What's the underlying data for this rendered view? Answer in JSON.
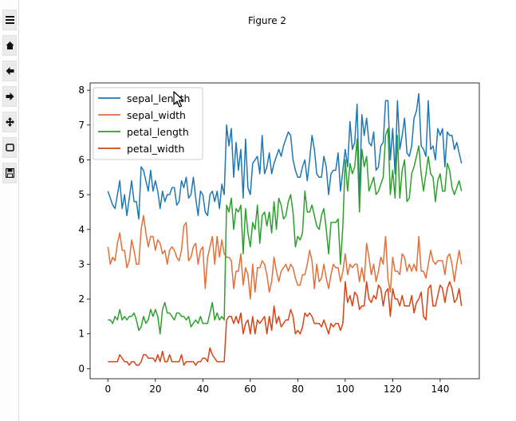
{
  "window": {
    "figure_title": "Figure 2"
  },
  "toolbar": {
    "tools": [
      {
        "name": "menu-icon",
        "label": "menu"
      },
      {
        "name": "home-icon",
        "label": "home"
      },
      {
        "name": "back-arrow-icon",
        "label": "back"
      },
      {
        "name": "forward-arrow-icon",
        "label": "forward"
      },
      {
        "name": "pan-icon",
        "label": "pan"
      },
      {
        "name": "zoom-rect-icon",
        "label": "zoom"
      },
      {
        "name": "save-icon",
        "label": "save"
      }
    ]
  },
  "colors": {
    "sepal_length": "#1f77b4",
    "sepal_width": "#e2703a",
    "petal_length": "#2ca02c",
    "petal_width": "#d84315"
  },
  "chart_data": {
    "type": "line",
    "title": "",
    "xlabel": "",
    "ylabel": "",
    "xlim": [
      -7.5,
      156.5
    ],
    "ylim": [
      -0.29,
      8.21
    ],
    "xticks": [
      0,
      20,
      40,
      60,
      80,
      100,
      120,
      140
    ],
    "yticks": [
      0,
      1,
      2,
      3,
      4,
      5,
      6,
      7,
      8
    ],
    "legend_position": "top-left",
    "grid": false,
    "series": [
      {
        "name": "sepal_length",
        "values": [
          5.1,
          4.9,
          4.7,
          4.6,
          5.0,
          5.4,
          4.6,
          5.0,
          4.4,
          4.9,
          5.4,
          4.8,
          4.8,
          4.3,
          5.8,
          5.7,
          5.4,
          5.1,
          5.7,
          5.1,
          5.4,
          5.1,
          4.6,
          5.1,
          4.8,
          5.0,
          5.0,
          5.2,
          5.2,
          4.7,
          4.8,
          5.4,
          5.2,
          5.5,
          4.9,
          5.0,
          5.5,
          4.9,
          4.4,
          5.1,
          5.0,
          4.5,
          4.4,
          5.0,
          5.1,
          4.8,
          5.1,
          4.6,
          5.3,
          5.0,
          7.0,
          6.4,
          6.9,
          5.5,
          6.5,
          5.7,
          6.3,
          4.9,
          6.6,
          5.2,
          5.0,
          5.9,
          6.0,
          6.1,
          5.6,
          6.7,
          5.6,
          5.8,
          6.2,
          5.6,
          5.9,
          6.1,
          6.3,
          6.1,
          6.4,
          6.6,
          6.8,
          6.7,
          6.0,
          5.7,
          5.5,
          5.5,
          5.8,
          6.0,
          5.4,
          6.0,
          6.7,
          6.3,
          5.6,
          5.5,
          5.5,
          6.1,
          5.8,
          5.0,
          5.6,
          5.7,
          5.7,
          6.2,
          5.1,
          5.7,
          6.3,
          5.8,
          7.1,
          6.3,
          6.5,
          7.6,
          4.9,
          7.3,
          6.7,
          7.2,
          6.5,
          6.4,
          6.8,
          5.7,
          5.8,
          6.4,
          6.5,
          7.7,
          7.7,
          6.0,
          6.9,
          5.6,
          7.7,
          6.3,
          6.7,
          7.2,
          6.2,
          6.1,
          6.4,
          7.2,
          7.4,
          7.9,
          6.4,
          6.3,
          6.1,
          7.7,
          6.3,
          6.4,
          6.0,
          6.9,
          6.7,
          6.9,
          5.8,
          6.8,
          6.7,
          6.7,
          6.3,
          6.5,
          6.2,
          5.9
        ]
      },
      {
        "name": "sepal_width",
        "values": [
          3.5,
          3.0,
          3.2,
          3.1,
          3.6,
          3.9,
          3.4,
          3.4,
          2.9,
          3.1,
          3.7,
          3.4,
          3.0,
          3.0,
          4.0,
          4.4,
          3.9,
          3.5,
          3.8,
          3.8,
          3.4,
          3.7,
          3.6,
          3.3,
          3.4,
          3.0,
          3.4,
          3.5,
          3.4,
          3.2,
          3.1,
          3.4,
          4.1,
          4.2,
          3.1,
          3.2,
          3.5,
          3.6,
          3.0,
          3.4,
          3.5,
          2.3,
          3.2,
          3.5,
          3.8,
          3.0,
          3.8,
          3.2,
          3.7,
          3.3,
          3.2,
          3.2,
          3.1,
          2.3,
          2.8,
          2.8,
          3.3,
          2.4,
          2.9,
          2.7,
          2.0,
          3.0,
          2.2,
          2.9,
          2.9,
          3.1,
          3.0,
          2.7,
          2.2,
          2.5,
          3.2,
          2.8,
          2.5,
          2.8,
          2.9,
          3.0,
          2.8,
          3.0,
          2.9,
          2.6,
          2.4,
          2.4,
          2.7,
          2.7,
          3.0,
          3.4,
          3.1,
          2.3,
          3.0,
          2.5,
          2.6,
          3.0,
          2.6,
          2.3,
          2.7,
          3.0,
          2.9,
          2.9,
          2.5,
          2.8,
          3.3,
          2.7,
          3.0,
          2.9,
          3.0,
          3.0,
          2.5,
          2.9,
          2.5,
          3.6,
          3.2,
          2.7,
          3.0,
          2.5,
          2.8,
          3.2,
          3.0,
          3.8,
          2.6,
          2.2,
          3.2,
          2.8,
          2.8,
          2.7,
          3.3,
          3.2,
          2.8,
          3.0,
          2.8,
          3.0,
          2.8,
          3.8,
          2.8,
          2.8,
          2.6,
          3.0,
          3.4,
          3.1,
          3.0,
          3.1,
          3.1,
          3.1,
          2.7,
          3.2,
          3.3,
          3.0,
          2.5,
          3.0,
          3.4,
          3.0
        ]
      },
      {
        "name": "petal_length",
        "values": [
          1.4,
          1.4,
          1.3,
          1.5,
          1.4,
          1.7,
          1.4,
          1.5,
          1.4,
          1.5,
          1.5,
          1.6,
          1.4,
          1.1,
          1.2,
          1.5,
          1.3,
          1.4,
          1.7,
          1.5,
          1.7,
          1.5,
          1.0,
          1.7,
          1.9,
          1.6,
          1.6,
          1.5,
          1.4,
          1.6,
          1.6,
          1.5,
          1.5,
          1.4,
          1.5,
          1.2,
          1.3,
          1.4,
          1.3,
          1.5,
          1.3,
          1.3,
          1.3,
          1.6,
          1.9,
          1.4,
          1.6,
          1.4,
          1.5,
          1.4,
          4.7,
          4.5,
          4.9,
          4.0,
          4.6,
          4.5,
          4.7,
          3.3,
          4.6,
          3.9,
          3.5,
          4.2,
          4.0,
          4.7,
          3.6,
          4.4,
          4.5,
          4.1,
          4.5,
          3.9,
          4.8,
          4.0,
          4.9,
          4.7,
          4.3,
          4.4,
          4.8,
          5.0,
          4.5,
          3.5,
          3.8,
          3.7,
          3.9,
          5.1,
          4.5,
          4.5,
          4.7,
          4.4,
          4.1,
          4.0,
          4.4,
          4.6,
          4.0,
          3.3,
          4.2,
          4.2,
          4.2,
          4.3,
          3.0,
          4.1,
          6.0,
          5.1,
          5.9,
          5.6,
          5.8,
          6.6,
          4.5,
          6.3,
          5.8,
          6.1,
          5.1,
          5.3,
          5.5,
          5.0,
          5.1,
          5.3,
          5.5,
          6.7,
          6.9,
          5.0,
          5.7,
          4.9,
          6.7,
          4.9,
          5.7,
          6.0,
          4.8,
          4.9,
          5.6,
          5.8,
          6.1,
          6.4,
          5.6,
          5.1,
          5.6,
          6.1,
          5.6,
          5.5,
          4.8,
          5.4,
          5.6,
          5.1,
          5.1,
          5.9,
          5.7,
          5.2,
          5.0,
          5.2,
          5.4,
          5.1
        ]
      },
      {
        "name": "petal_width",
        "values": [
          0.2,
          0.2,
          0.2,
          0.2,
          0.2,
          0.4,
          0.3,
          0.2,
          0.2,
          0.1,
          0.2,
          0.2,
          0.1,
          0.1,
          0.2,
          0.4,
          0.4,
          0.3,
          0.3,
          0.3,
          0.2,
          0.4,
          0.2,
          0.5,
          0.2,
          0.2,
          0.4,
          0.2,
          0.2,
          0.2,
          0.2,
          0.4,
          0.1,
          0.2,
          0.2,
          0.2,
          0.2,
          0.1,
          0.2,
          0.2,
          0.3,
          0.3,
          0.2,
          0.6,
          0.4,
          0.3,
          0.2,
          0.2,
          0.2,
          0.2,
          1.4,
          1.5,
          1.5,
          1.3,
          1.5,
          1.3,
          1.6,
          1.0,
          1.3,
          1.4,
          1.0,
          1.5,
          1.0,
          1.4,
          1.3,
          1.4,
          1.5,
          1.0,
          1.5,
          1.1,
          1.8,
          1.3,
          1.5,
          1.2,
          1.3,
          1.4,
          1.4,
          1.7,
          1.5,
          1.0,
          1.1,
          1.0,
          1.2,
          1.6,
          1.5,
          1.6,
          1.5,
          1.3,
          1.3,
          1.3,
          1.2,
          1.4,
          1.2,
          1.0,
          1.3,
          1.2,
          1.3,
          1.3,
          1.1,
          1.3,
          2.5,
          1.9,
          2.1,
          1.8,
          2.2,
          2.1,
          1.7,
          1.8,
          1.8,
          2.5,
          2.0,
          1.9,
          2.1,
          2.0,
          2.4,
          2.3,
          1.8,
          2.2,
          2.3,
          1.5,
          2.3,
          2.0,
          2.0,
          1.8,
          2.1,
          1.8,
          1.8,
          1.8,
          2.1,
          1.6,
          1.9,
          2.0,
          2.2,
          1.5,
          1.4,
          2.3,
          2.4,
          1.8,
          1.8,
          2.1,
          2.4,
          2.3,
          1.9,
          2.3,
          2.5,
          2.3,
          1.9,
          2.0,
          2.3,
          1.8
        ]
      }
    ]
  }
}
